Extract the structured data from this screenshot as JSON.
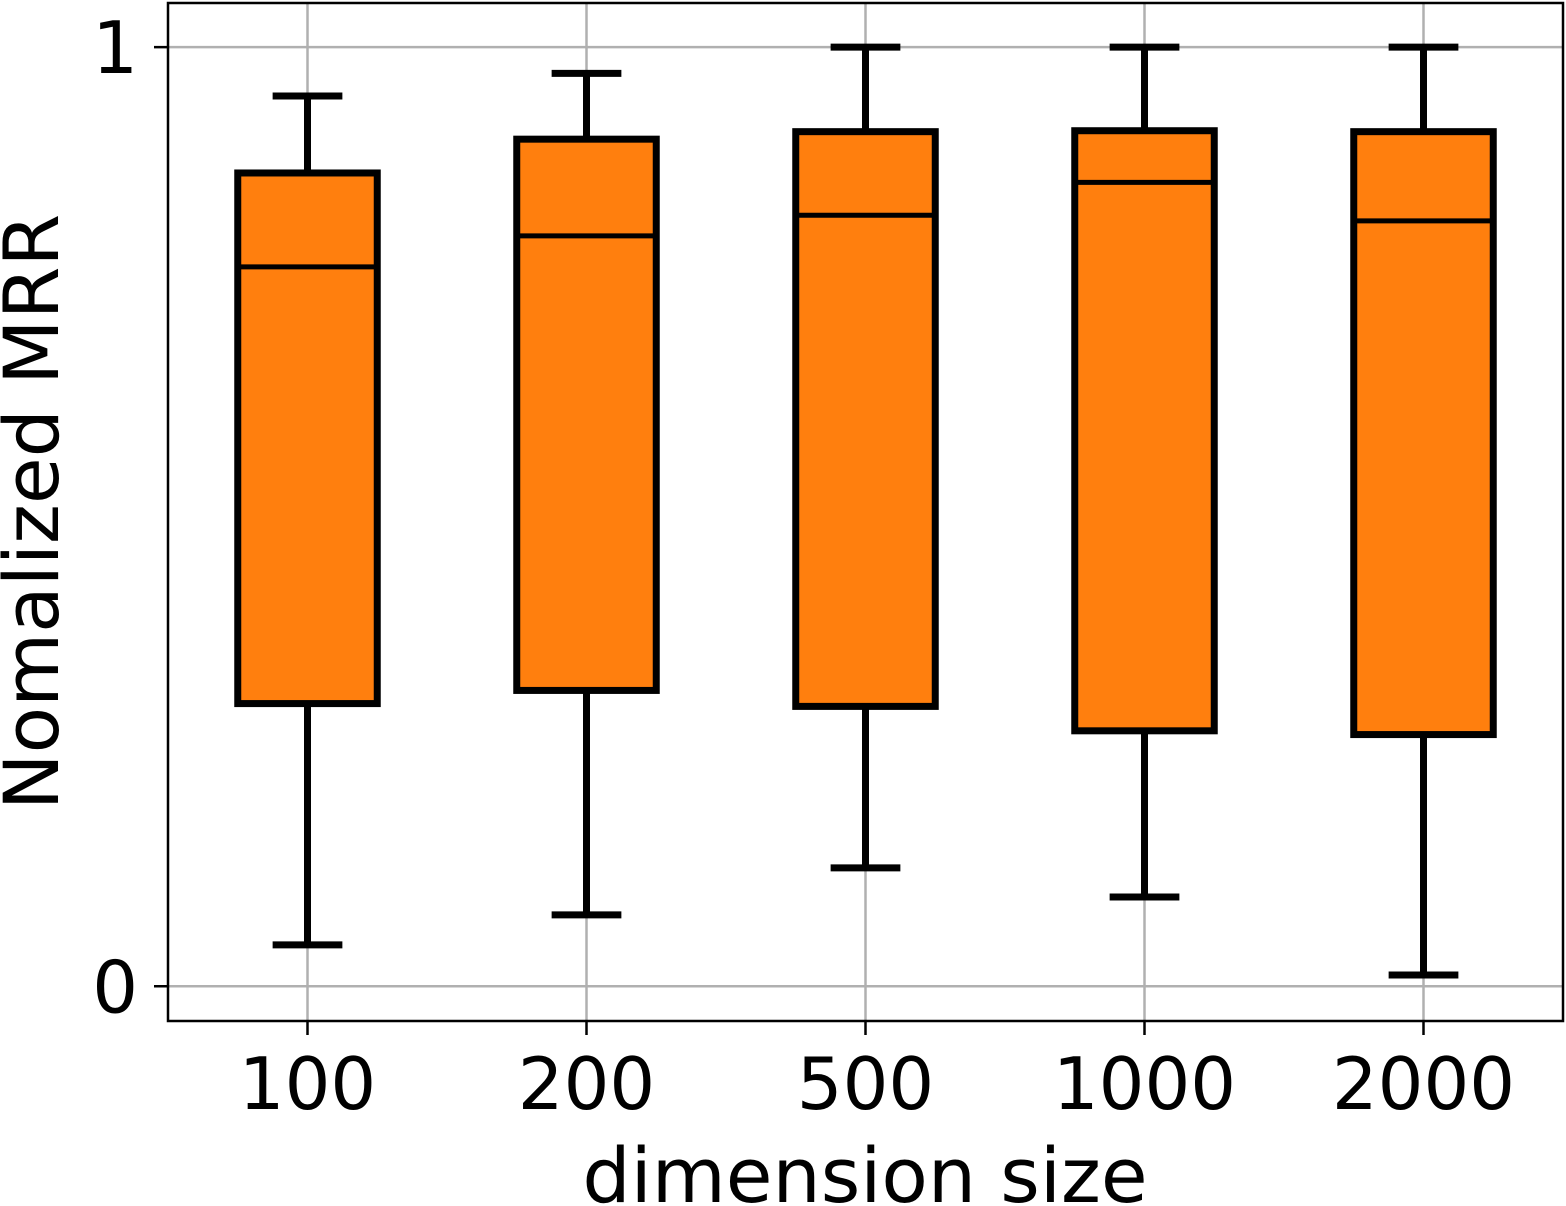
{
  "chart_data": {
    "type": "box",
    "title": "",
    "xlabel": "dimension size",
    "ylabel": "Nomalized MRR",
    "categories": [
      "100",
      "200",
      "500",
      "1000",
      "2000"
    ],
    "ylim": [
      -0.037,
      1.047
    ],
    "yticks": [
      0,
      1
    ],
    "ytick_labels": [
      "0",
      "1"
    ],
    "grid": true,
    "box_color": "#ff7f0e",
    "edge_color": "#000000",
    "grid_color": "#b0b0b0",
    "boxes": [
      {
        "whisker_low": 0.044,
        "q1": 0.301,
        "median": 0.766,
        "q3": 0.866,
        "whisker_high": 0.948
      },
      {
        "whisker_low": 0.076,
        "q1": 0.315,
        "median": 0.799,
        "q3": 0.902,
        "whisker_high": 0.972
      },
      {
        "whisker_low": 0.126,
        "q1": 0.298,
        "median": 0.821,
        "q3": 0.91,
        "whisker_high": 1.0
      },
      {
        "whisker_low": 0.095,
        "q1": 0.272,
        "median": 0.856,
        "q3": 0.911,
        "whisker_high": 1.0
      },
      {
        "whisker_low": 0.012,
        "q1": 0.268,
        "median": 0.815,
        "q3": 0.91,
        "whisker_high": 1.0
      }
    ]
  }
}
